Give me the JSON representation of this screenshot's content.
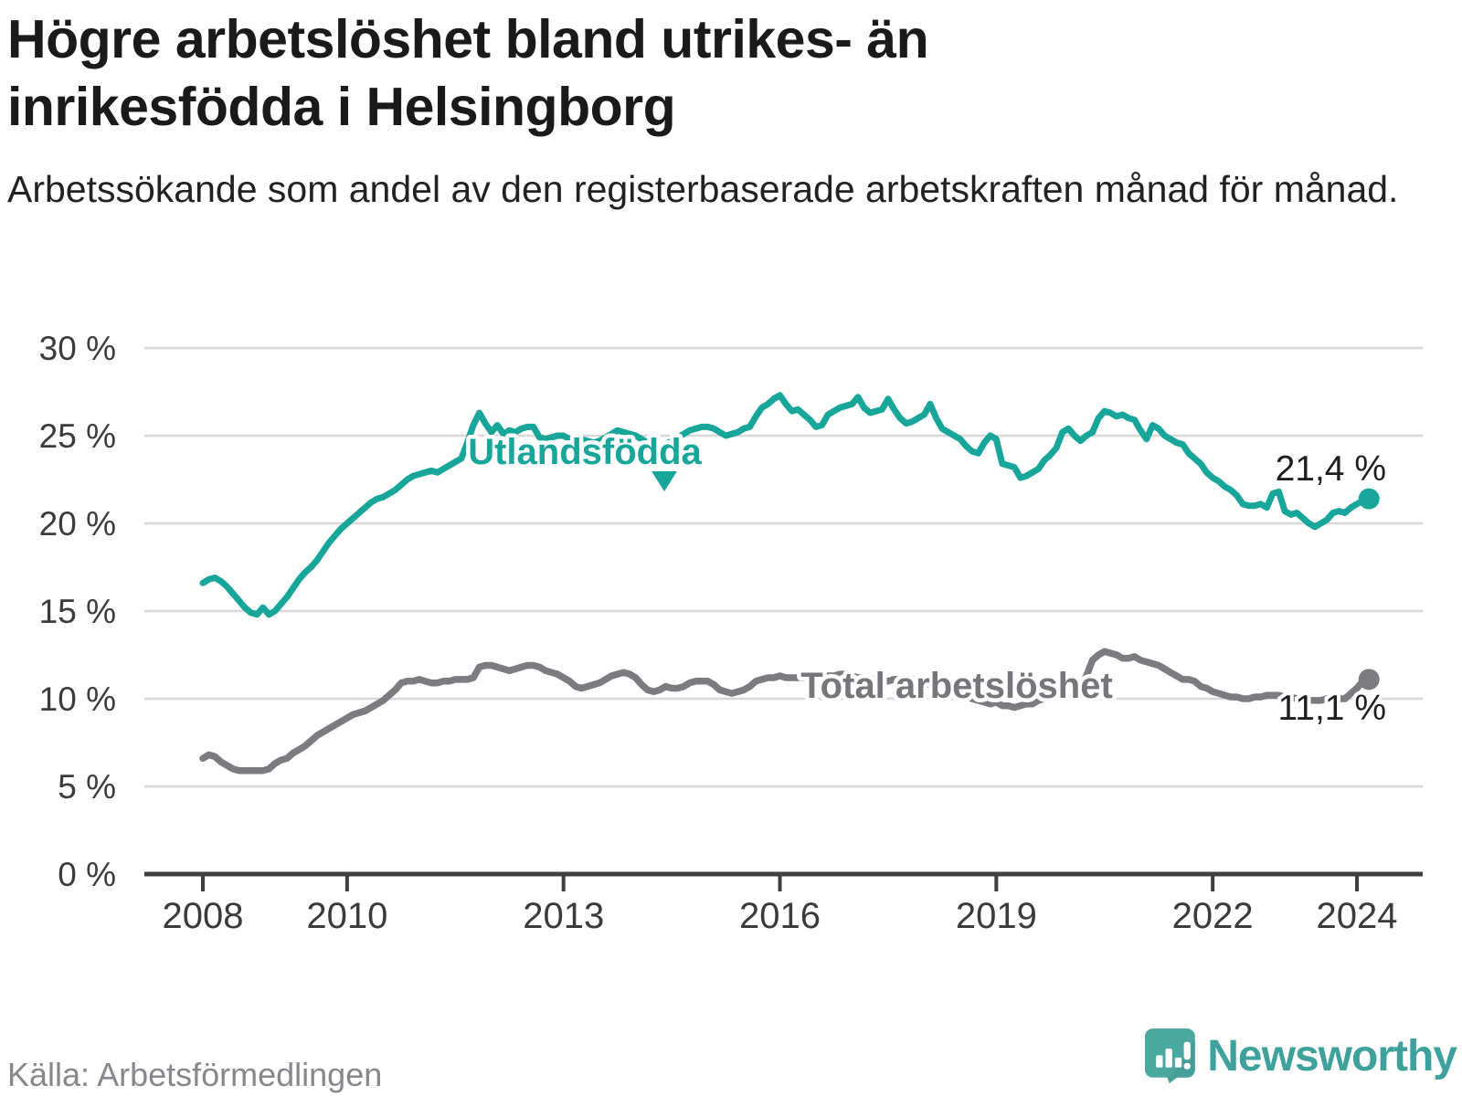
{
  "title": "Högre arbetslöshet bland utrikes- än inrikesfödda i Helsingborg",
  "subtitle": "Arbetssökande som andel av den registerbaserade arbetskraften månad för månad.",
  "source": "Källa: Arbetsförmedlingen",
  "logo": {
    "name": "Newsworthy"
  },
  "colors": {
    "foreign_born": "#18a69b",
    "total": "#7b7b80",
    "value_label": "#1f1f1f",
    "gridline": "#d8d8d8",
    "axis": "#3f3f3f",
    "tick_text": "#3b3b3b",
    "total_label_text": "#76767b"
  },
  "chart_data": {
    "type": "line",
    "title": "Högre arbetslöshet bland utrikes- än inrikesfödda i Helsingborg",
    "xlabel": "",
    "ylabel": "Arbetssökande som andel av den registerbaserade arbetskraften",
    "grid": true,
    "legend_position": "inline-annotations",
    "x_start_year": 2008,
    "x_step_months": 1,
    "x_axis_ticks": [
      2008,
      2010,
      2013,
      2016,
      2019,
      2022,
      2024
    ],
    "x_axis_tick_labels": [
      "2008",
      "2010",
      "2013",
      "2016",
      "2019",
      "2022",
      "2024"
    ],
    "ylim": [
      0,
      30
    ],
    "y_axis_tick_values": [
      0,
      5,
      10,
      15,
      20,
      25,
      30
    ],
    "y_axis_tick_labels": [
      "0 %",
      "5 %",
      "10 %",
      "15 %",
      "20 %",
      "25 %",
      "30 %"
    ],
    "series": [
      {
        "name": "Utlandsfödda",
        "end_label": "21,4 %",
        "end_value": 21.4,
        "values": [
          16.6,
          16.8,
          16.9,
          16.7,
          16.4,
          16.0,
          15.6,
          15.2,
          14.9,
          14.8,
          15.2,
          14.8,
          15.0,
          15.4,
          15.8,
          16.3,
          16.8,
          17.2,
          17.5,
          17.9,
          18.4,
          18.9,
          19.3,
          19.7,
          20.0,
          20.3,
          20.6,
          20.9,
          21.2,
          21.4,
          21.5,
          21.7,
          21.9,
          22.2,
          22.5,
          22.7,
          22.8,
          22.9,
          23.0,
          22.9,
          23.1,
          23.3,
          23.5,
          23.7,
          24.6,
          25.6,
          26.3,
          25.7,
          25.2,
          25.6,
          25.1,
          25.3,
          25.2,
          25.4,
          25.5,
          25.5,
          24.9,
          24.8,
          24.9,
          25.0,
          25.0,
          24.8,
          24.9,
          24.8,
          24.7,
          24.6,
          24.7,
          24.9,
          25.1,
          25.3,
          25.2,
          25.1,
          25.0,
          24.8,
          24.6,
          24.4,
          24.3,
          24.5,
          24.7,
          24.9,
          25.1,
          25.3,
          25.4,
          25.5,
          25.5,
          25.4,
          25.2,
          25.0,
          25.1,
          25.2,
          25.4,
          25.5,
          26.1,
          26.6,
          26.8,
          27.1,
          27.3,
          26.8,
          26.4,
          26.5,
          26.2,
          25.9,
          25.5,
          25.6,
          26.2,
          26.4,
          26.6,
          26.7,
          26.8,
          27.2,
          26.6,
          26.3,
          26.4,
          26.5,
          27.1,
          26.5,
          26.0,
          25.7,
          25.8,
          26.0,
          26.2,
          26.8,
          26.0,
          25.4,
          25.2,
          25.0,
          24.8,
          24.4,
          24.1,
          24.0,
          24.6,
          25.0,
          24.8,
          23.4,
          23.3,
          23.2,
          22.6,
          22.7,
          22.9,
          23.1,
          23.6,
          23.9,
          24.3,
          25.2,
          25.4,
          25.0,
          24.7,
          25.0,
          25.2,
          26.0,
          26.4,
          26.3,
          26.1,
          26.2,
          26.0,
          25.9,
          25.3,
          24.8,
          25.6,
          25.4,
          25.0,
          24.8,
          24.6,
          24.5,
          24.0,
          23.7,
          23.4,
          22.9,
          22.6,
          22.4,
          22.1,
          21.9,
          21.6,
          21.1,
          21.0,
          21.0,
          21.1,
          20.9,
          21.7,
          21.8,
          20.7,
          20.5,
          20.6,
          20.3,
          20.0,
          19.8,
          20.0,
          20.2,
          20.6,
          20.7,
          20.6,
          20.9,
          21.1,
          21.3,
          21.4
        ]
      },
      {
        "name": "Total arbetslöshet",
        "end_label": "11,1 %",
        "end_value": 11.1,
        "values": [
          6.6,
          6.8,
          6.7,
          6.4,
          6.2,
          6.0,
          5.9,
          5.9,
          5.9,
          5.9,
          5.9,
          6.0,
          6.3,
          6.5,
          6.6,
          6.9,
          7.1,
          7.3,
          7.6,
          7.9,
          8.1,
          8.3,
          8.5,
          8.7,
          8.9,
          9.1,
          9.2,
          9.3,
          9.5,
          9.7,
          9.9,
          10.2,
          10.5,
          10.9,
          11.0,
          11.0,
          11.1,
          11.0,
          10.9,
          10.9,
          11.0,
          11.0,
          11.1,
          11.1,
          11.1,
          11.2,
          11.8,
          11.9,
          11.9,
          11.8,
          11.7,
          11.6,
          11.7,
          11.8,
          11.9,
          11.9,
          11.8,
          11.6,
          11.5,
          11.4,
          11.2,
          11.0,
          10.7,
          10.6,
          10.7,
          10.8,
          10.9,
          11.1,
          11.3,
          11.4,
          11.5,
          11.4,
          11.2,
          10.8,
          10.5,
          10.4,
          10.5,
          10.7,
          10.6,
          10.6,
          10.7,
          10.9,
          11.0,
          11.0,
          11.0,
          10.8,
          10.5,
          10.4,
          10.3,
          10.4,
          10.5,
          10.7,
          11.0,
          11.1,
          11.2,
          11.2,
          11.3,
          11.2,
          11.2,
          11.2,
          11.2,
          11.2,
          11.2,
          11.3,
          11.3,
          11.3,
          11.4,
          11.4,
          11.3,
          11.2,
          11.2,
          11.1,
          11.1,
          11.0,
          11.0,
          11.1,
          11.1,
          11.2,
          11.1,
          11.0,
          10.9,
          10.8,
          10.6,
          10.5,
          10.4,
          10.3,
          10.2,
          10.1,
          10.0,
          9.9,
          9.8,
          9.7,
          9.8,
          9.6,
          9.6,
          9.5,
          9.6,
          9.7,
          9.7,
          9.9,
          10.0,
          10.1,
          10.3,
          10.4,
          10.4,
          10.5,
          10.7,
          11.3,
          12.2,
          12.5,
          12.7,
          12.6,
          12.5,
          12.3,
          12.3,
          12.4,
          12.2,
          12.1,
          12.0,
          11.9,
          11.7,
          11.5,
          11.3,
          11.1,
          11.1,
          11.0,
          10.7,
          10.6,
          10.4,
          10.3,
          10.2,
          10.1,
          10.1,
          10.0,
          10.0,
          10.1,
          10.1,
          10.2,
          10.2,
          10.2,
          10.1,
          10.1,
          10.0,
          9.9,
          9.9,
          9.9,
          9.9,
          10.0,
          9.9,
          10.0,
          10.0,
          10.3,
          10.6,
          11.0,
          11.1
        ]
      }
    ]
  }
}
